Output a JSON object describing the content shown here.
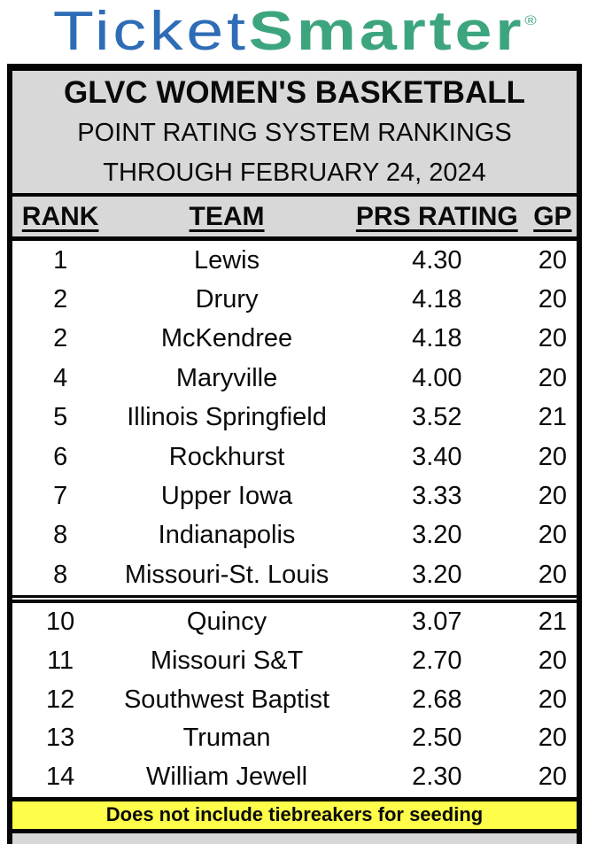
{
  "logo": {
    "part1": "Ticket",
    "part2": "Smarter",
    "registered": "®"
  },
  "colors": {
    "logo_blue": "#2e6db6",
    "logo_green": "#3da57e",
    "header_gray": "#d8d8d8",
    "note_yellow": "#fdfd4a",
    "border_black": "#050505"
  },
  "chart_data": {
    "type": "table",
    "title": "GLVC WOMEN'S BASKETBALL",
    "subtitle": "POINT RATING SYSTEM RANKINGS",
    "through": "THROUGH FEBRUARY 24, 2024",
    "columns": [
      "RANK",
      "TEAM",
      "PRS RATING",
      "GP"
    ],
    "sections": [
      {
        "rows": [
          {
            "rank": "1",
            "team": "Lewis",
            "rating": "4.30",
            "gp": "20"
          },
          {
            "rank": "2",
            "team": "Drury",
            "rating": "4.18",
            "gp": "20"
          },
          {
            "rank": "2",
            "team": "McKendree",
            "rating": "4.18",
            "gp": "20"
          },
          {
            "rank": "4",
            "team": "Maryville",
            "rating": "4.00",
            "gp": "20"
          },
          {
            "rank": "5",
            "team": "Illinois Springfield",
            "rating": "3.52",
            "gp": "21"
          },
          {
            "rank": "6",
            "team": "Rockhurst",
            "rating": "3.40",
            "gp": "20"
          },
          {
            "rank": "7",
            "team": "Upper Iowa",
            "rating": "3.33",
            "gp": "20"
          },
          {
            "rank": "8",
            "team": "Indianapolis",
            "rating": "3.20",
            "gp": "20"
          },
          {
            "rank": "8",
            "team": "Missouri-St. Louis",
            "rating": "3.20",
            "gp": "20"
          }
        ]
      },
      {
        "rows": [
          {
            "rank": "10",
            "team": "Quincy",
            "rating": "3.07",
            "gp": "21"
          },
          {
            "rank": "11",
            "team": "Missouri S&T",
            "rating": "2.70",
            "gp": "20"
          },
          {
            "rank": "12",
            "team": "Southwest Baptist",
            "rating": "2.68",
            "gp": "20"
          },
          {
            "rank": "13",
            "team": "Truman",
            "rating": "2.50",
            "gp": "20"
          },
          {
            "rank": "14",
            "team": "William Jewell",
            "rating": "2.30",
            "gp": "20"
          }
        ]
      }
    ],
    "note": "Does not include tiebreakers for seeding"
  }
}
